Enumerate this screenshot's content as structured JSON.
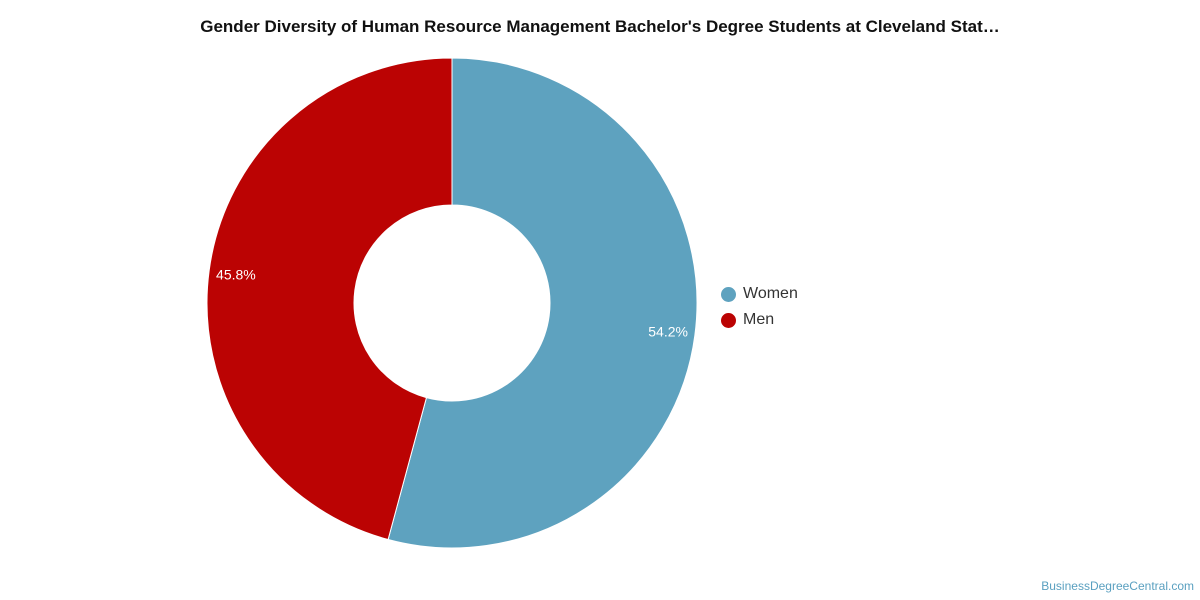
{
  "chart_data": {
    "type": "pie",
    "variant": "donut",
    "title": "Gender Diversity of Human Resource Management Bachelor's Degree Students at Cleveland Stat…",
    "slices": [
      {
        "label": "Women",
        "value": 54.2,
        "display": "54.2%",
        "color": "#5ea2bf"
      },
      {
        "label": "Men",
        "value": 45.8,
        "display": "45.8%",
        "color": "#bb0303"
      }
    ],
    "legend_position": "right"
  },
  "footer": {
    "watermark": "BusinessDegreeCentral.com"
  }
}
